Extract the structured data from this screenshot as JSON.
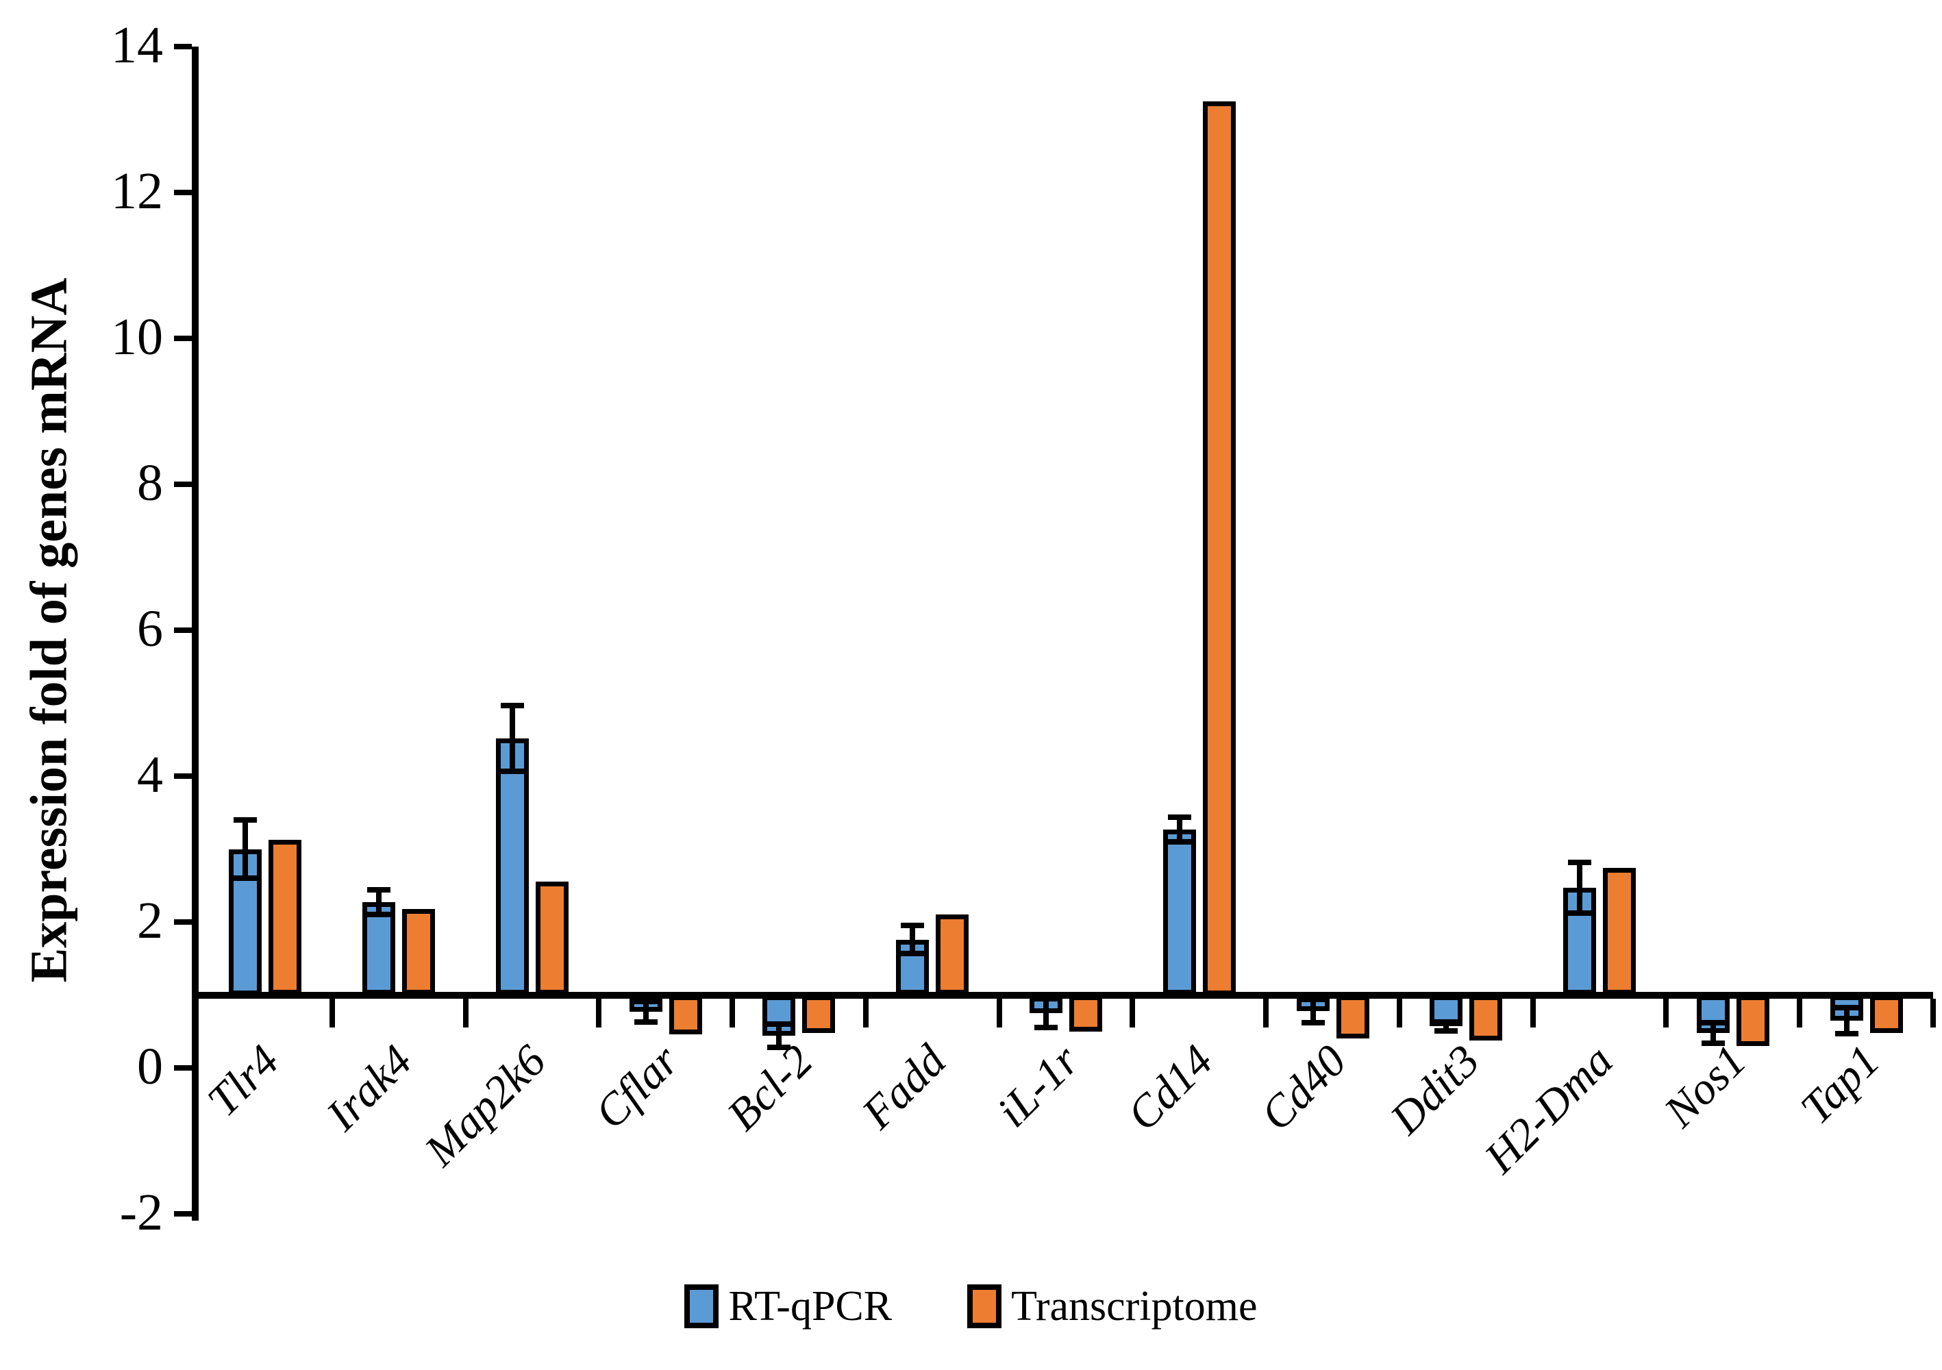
{
  "chart_data": {
    "type": "bar",
    "title": "",
    "ylabel": "Expression fold of genes mRNA",
    "xlabel": "",
    "categories": [
      "Tlr4",
      "Irak4",
      "Map2k6",
      "Cflar",
      "Bcl-2",
      "Fadd",
      "iL-1r",
      "Cd14",
      "Cd40",
      "Ddit3",
      "H2-Dma",
      "Nos1",
      "Tap1"
    ],
    "series": [
      {
        "name": "RT-qPCR",
        "color": "#5B9BD5",
        "values": [
          3.0,
          2.27,
          4.52,
          0.77,
          0.44,
          1.76,
          0.75,
          3.27,
          0.78,
          0.57,
          2.47,
          0.48,
          0.65
        ],
        "errors": [
          0.4,
          0.17,
          0.45,
          0.14,
          0.16,
          0.19,
          0.2,
          0.17,
          0.16,
          0.06,
          0.35,
          0.14,
          0.18
        ]
      },
      {
        "name": "Transcriptome",
        "color": "#ED7D31",
        "values": [
          3.13,
          2.18,
          2.55,
          0.46,
          0.48,
          2.1,
          0.5,
          13.25,
          0.4,
          0.38,
          2.74,
          0.3,
          0.48
        ]
      }
    ],
    "ylim": [
      -2,
      14
    ],
    "yticks": [
      14,
      12,
      10,
      8,
      6,
      4,
      2,
      0,
      -2
    ],
    "bar_baseline": 1,
    "grid": false,
    "legend_position": "bottom",
    "bar_border_color": "#000000",
    "axis_color": "#000000"
  }
}
